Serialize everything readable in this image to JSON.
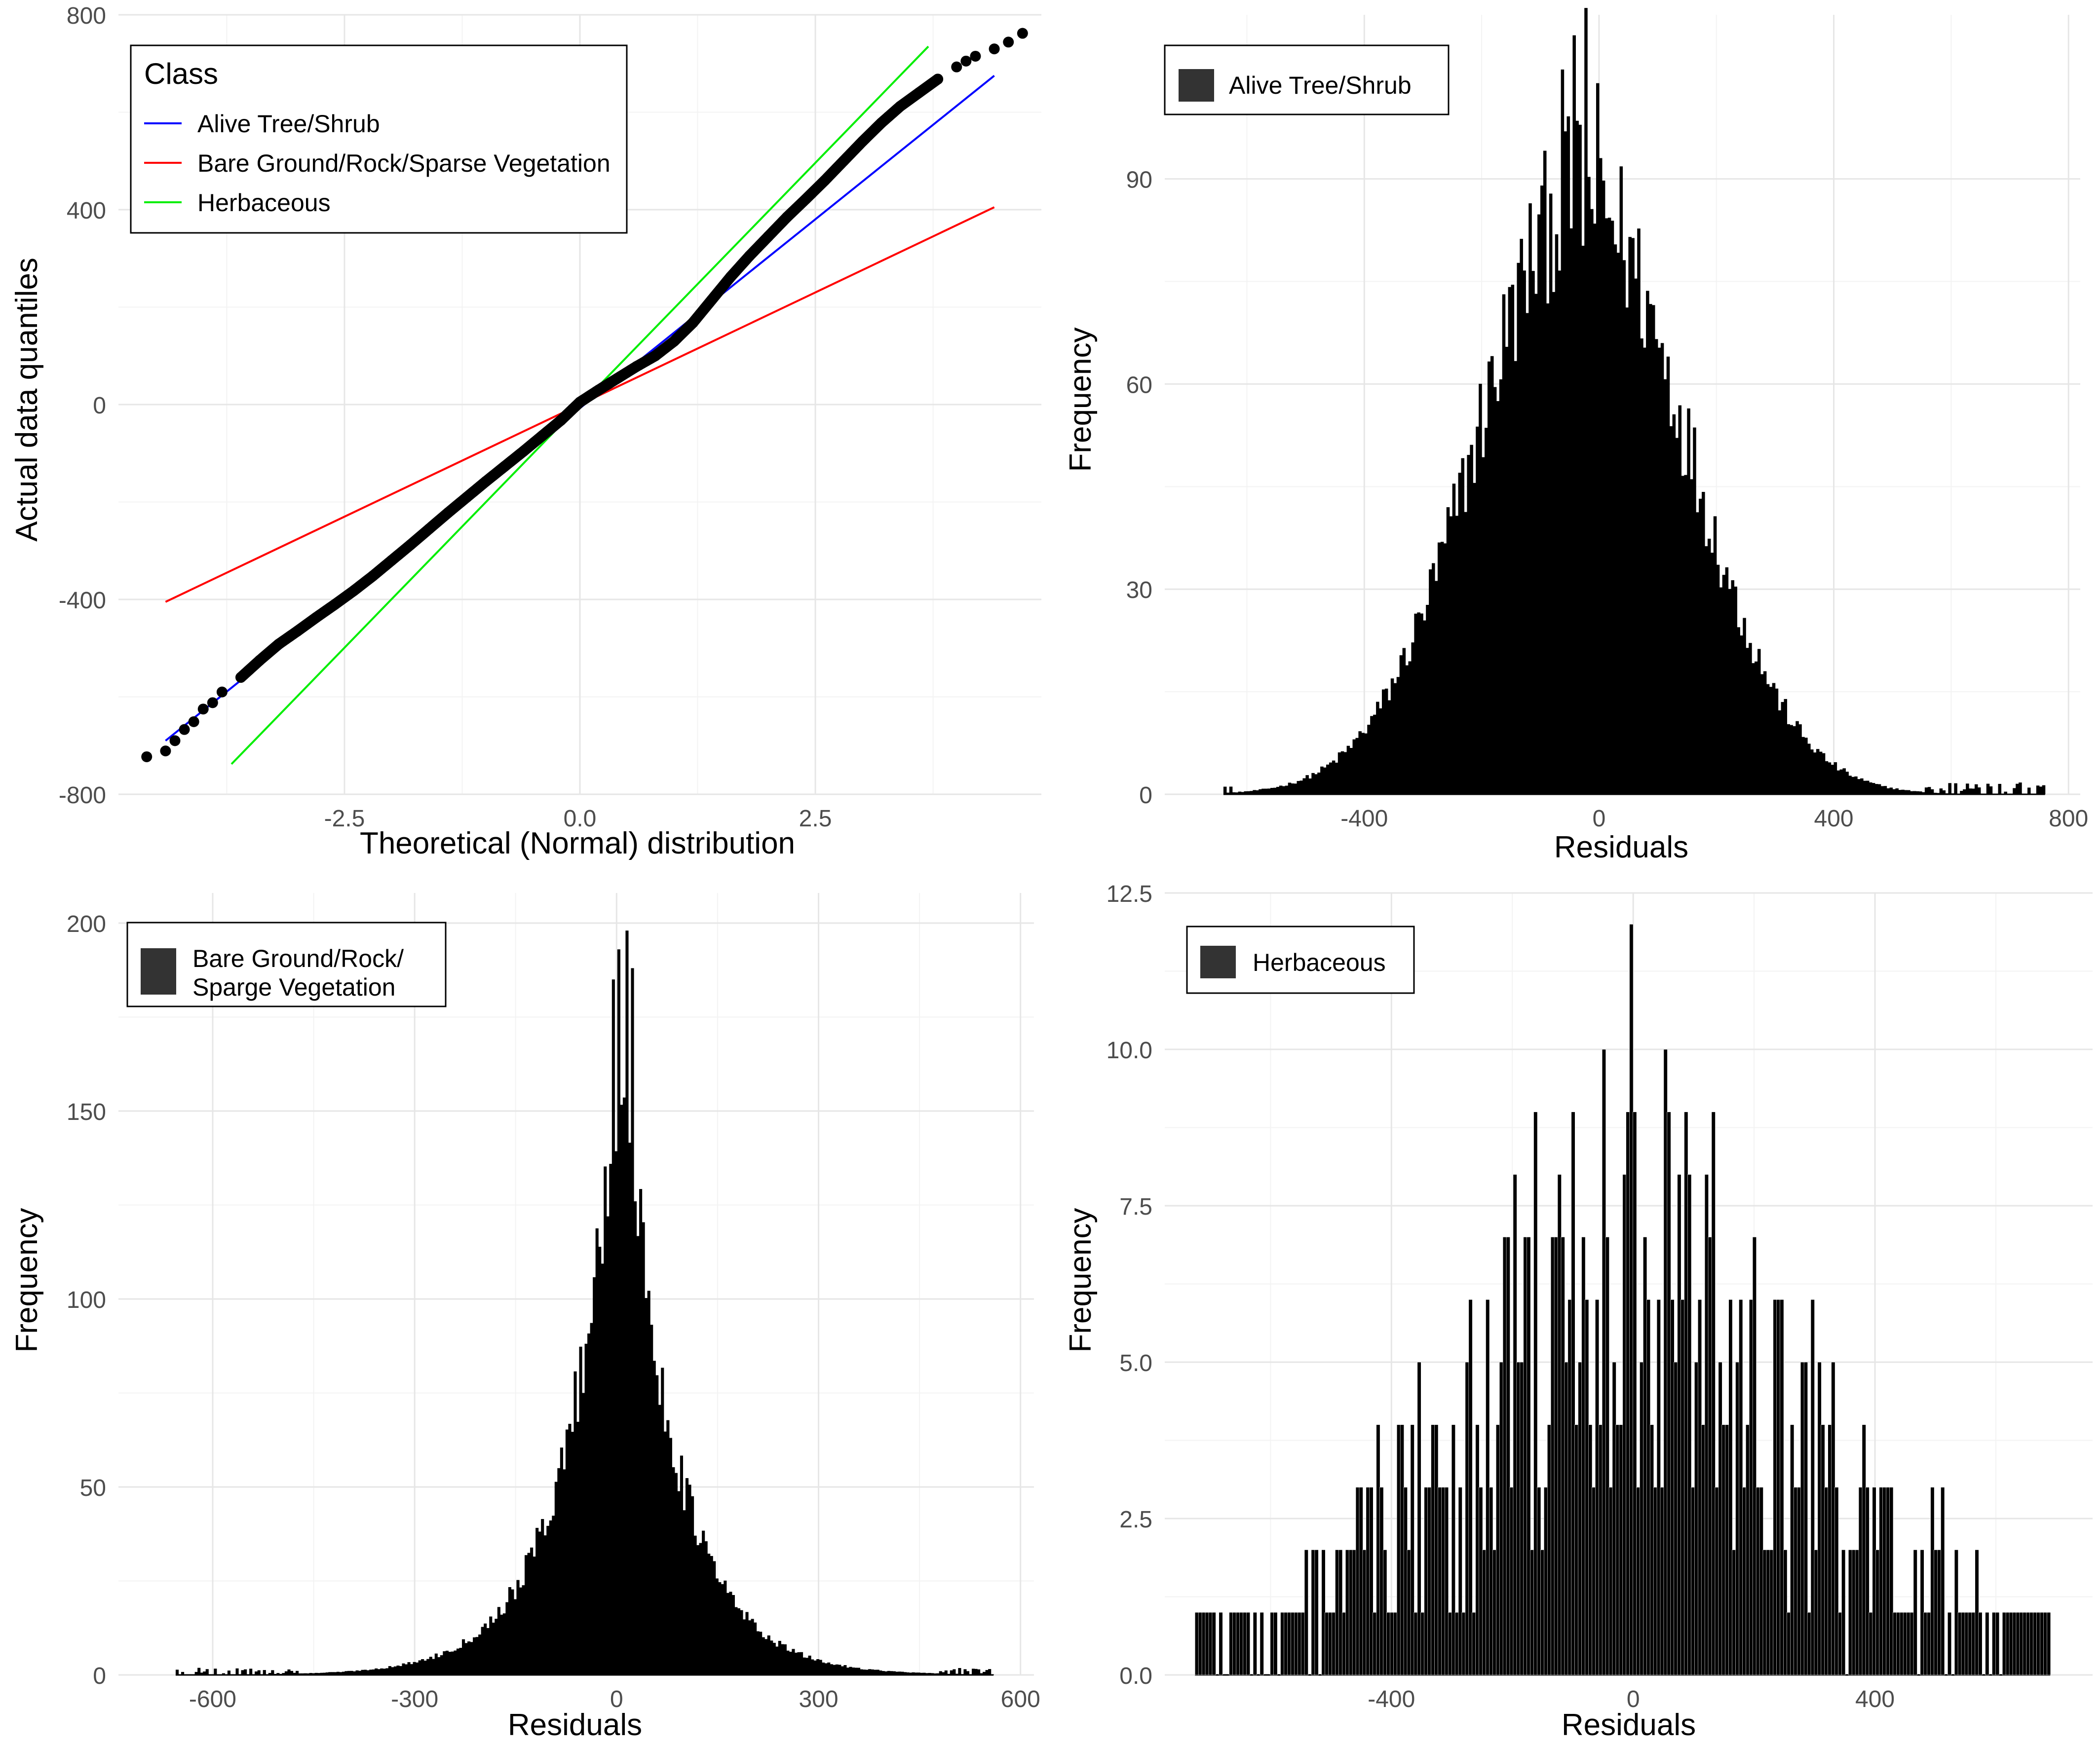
{
  "colors": {
    "grid_major": "#e6e6e6",
    "grid_minor": "#f3f3f3",
    "axis_text": "#4d4d4d",
    "title_text": "#000000",
    "bars": "#000000",
    "points": "#000000",
    "legend_key_fill": "#333333",
    "line_alive": "#0000ff",
    "line_bare": "#ff0000",
    "line_herb": "#00ee00"
  },
  "chart_data": [
    {
      "id": "qq",
      "type": "scatter",
      "xlabel": "Theoretical (Normal) distribution",
      "ylabel": "Actual data quantiles",
      "xlim": [
        -4.9,
        4.9
      ],
      "ylim": [
        -800,
        800
      ],
      "xticks": [
        -2.5,
        0,
        2.5
      ],
      "xtick_labels": [
        "-2.5",
        "0.0",
        "2.5"
      ],
      "yticks": [
        -800,
        -400,
        0,
        400,
        800
      ],
      "ytick_labels": [
        "-800",
        "-400",
        "0",
        "400",
        "800"
      ],
      "legend": {
        "title": "Class",
        "position": "top-left",
        "entries": [
          {
            "label": "Alive Tree/Shrub",
            "color": "#0000ff"
          },
          {
            "label": "Bare Ground/Rock/Sparse Vegetation",
            "color": "#ff0000"
          },
          {
            "label": "Herbaceous",
            "color": "#00ee00"
          }
        ]
      },
      "reference_lines": [
        {
          "name": "Alive Tree/Shrub",
          "color": "#0000ff",
          "x": [
            -4.4,
            4.4
          ],
          "y": [
            -690,
            675
          ]
        },
        {
          "name": "Bare Ground/Rock/Sparse Vegetation",
          "color": "#ff0000",
          "x": [
            -4.4,
            4.4
          ],
          "y": [
            -405,
            405
          ]
        },
        {
          "name": "Herbaceous",
          "color": "#00ee00",
          "x": [
            -3.7,
            3.7
          ],
          "y": [
            -738,
            735
          ]
        }
      ],
      "points": [
        [
          -4.6,
          -723
        ],
        [
          -4.4,
          -711
        ],
        [
          -4.3,
          -690
        ],
        [
          -4.2,
          -667
        ],
        [
          -4.1,
          -651
        ],
        [
          -4.0,
          -625
        ],
        [
          -3.9,
          -612
        ],
        [
          -3.8,
          -590
        ],
        [
          -3.6,
          -560
        ],
        [
          -3.4,
          -525
        ],
        [
          -3.2,
          -492
        ],
        [
          -3.0,
          -465
        ],
        [
          -2.8,
          -437
        ],
        [
          -2.6,
          -410
        ],
        [
          -2.4,
          -382
        ],
        [
          -2.2,
          -352
        ],
        [
          -2.0,
          -320
        ],
        [
          -1.8,
          -288
        ],
        [
          -1.6,
          -255
        ],
        [
          -1.4,
          -222
        ],
        [
          -1.2,
          -190
        ],
        [
          -1.0,
          -158
        ],
        [
          -0.8,
          -127
        ],
        [
          -0.6,
          -96
        ],
        [
          -0.4,
          -64
        ],
        [
          -0.2,
          -32
        ],
        [
          0.0,
          5
        ],
        [
          0.2,
          30
        ],
        [
          0.4,
          54
        ],
        [
          0.6,
          78
        ],
        [
          0.8,
          100
        ],
        [
          1.0,
          130
        ],
        [
          1.2,
          168
        ],
        [
          1.4,
          215
        ],
        [
          1.6,
          262
        ],
        [
          1.8,
          305
        ],
        [
          2.0,
          345
        ],
        [
          2.2,
          385
        ],
        [
          2.4,
          422
        ],
        [
          2.6,
          460
        ],
        [
          2.8,
          500
        ],
        [
          3.0,
          540
        ],
        [
          3.2,
          578
        ],
        [
          3.4,
          612
        ],
        [
          3.6,
          640
        ],
        [
          3.8,
          668
        ],
        [
          4.0,
          693
        ],
        [
          4.1,
          705
        ],
        [
          4.2,
          715
        ],
        [
          4.4,
          730
        ],
        [
          4.55,
          744
        ],
        [
          4.7,
          762
        ]
      ]
    },
    {
      "id": "alive",
      "type": "bar",
      "title": "Alive Tree/Shrub",
      "xlabel": "Residuals",
      "ylabel": "Frequency",
      "xlim": [
        -740,
        820
      ],
      "ylim": [
        0,
        114
      ],
      "xticks": [
        -400,
        0,
        400,
        800
      ],
      "xtick_labels": [
        "-400",
        "0",
        "400",
        "800"
      ],
      "yticks": [
        0,
        30,
        60,
        90
      ],
      "ytick_labels": [
        "0",
        "30",
        "60",
        "90"
      ],
      "legend": {
        "position": "top-left",
        "entries": [
          {
            "label": "Alive Tree/Shrub"
          }
        ]
      },
      "bin_range": [
        -640,
        760
      ],
      "bin_count": 280,
      "shape": {
        "kind": "gauss",
        "center": -30,
        "sigma": 175,
        "peak": 88
      },
      "noise": 0.14,
      "floor": 0.3,
      "spikes": [
        [
          -45,
          111
        ],
        [
          -25,
          115
        ],
        [
          -65,
          106
        ],
        [
          -5,
          104
        ]
      ]
    },
    {
      "id": "bare",
      "type": "bar",
      "title": "Bare Ground/Rock/\nSparge Vegetation",
      "xlabel": "Residuals",
      "ylabel": "Frequency",
      "xlim": [
        -740,
        620
      ],
      "ylim": [
        0,
        208
      ],
      "xticks": [
        -600,
        -300,
        0,
        300,
        600
      ],
      "xtick_labels": [
        "-600",
        "-300",
        "0",
        "300",
        "600"
      ],
      "yticks": [
        0,
        50,
        100,
        150,
        200
      ],
      "ytick_labels": [
        "0",
        "50",
        "100",
        "150",
        "200"
      ],
      "legend": {
        "position": "top-left",
        "entries": [
          {
            "label": "Bare Ground/Rock/\nSparge Vegetation"
          }
        ]
      },
      "bin_range": [
        -655,
        560
      ],
      "bin_count": 300,
      "shape": {
        "kind": "laplace",
        "center": 5,
        "scale": 78,
        "peak": 170
      },
      "noise": 0.13,
      "floor": 0.4,
      "spikes": [
        [
          15,
          198
        ],
        [
          5,
          193
        ],
        [
          25,
          188
        ],
        [
          -5,
          185
        ]
      ]
    },
    {
      "id": "herb",
      "type": "bar",
      "title": "Herbaceous",
      "xlabel": "Residuals",
      "ylabel": "Frequency",
      "xlim": [
        -775,
        760
      ],
      "ylim": [
        0,
        12.5
      ],
      "xticks": [
        -400,
        0,
        400
      ],
      "xtick_labels": [
        "-400",
        "0",
        "400"
      ],
      "yticks": [
        0,
        2.5,
        5,
        7.5,
        10,
        12.5
      ],
      "ytick_labels": [
        "0.0",
        "2.5",
        "5.0",
        "7.5",
        "10.0",
        "12.5"
      ],
      "legend": {
        "position": "top-left",
        "entries": [
          {
            "label": "Herbaceous"
          }
        ]
      },
      "bin_range": [
        -725,
        690
      ],
      "bin_count": 250,
      "shape": {
        "kind": "gauss",
        "center": 0,
        "sigma": 280,
        "peak": 6
      },
      "integer": true,
      "noise": 0.9,
      "floor": 0.6,
      "spikes": [
        [
          -5,
          12
        ],
        [
          -50,
          10
        ],
        [
          55,
          10
        ],
        [
          -100,
          9
        ],
        [
          90,
          9
        ],
        [
          -160,
          9
        ],
        [
          130,
          9
        ],
        [
          -10,
          9
        ]
      ]
    }
  ]
}
